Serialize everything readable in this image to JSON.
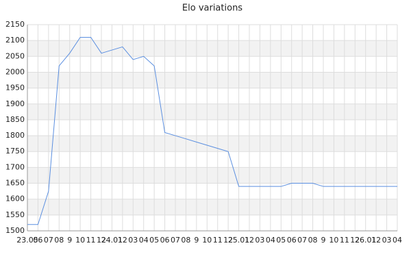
{
  "chart_data": {
    "type": "line",
    "title": "Elo variations",
    "categories": [
      "23.05",
      "06",
      "07",
      "08",
      "9",
      "10",
      "11",
      "12",
      "24.01",
      "12",
      "03",
      "04",
      "05",
      "06",
      "07",
      "08",
      "9",
      "10",
      "11",
      "12",
      "25.01",
      "12",
      "03",
      "04",
      "05",
      "06",
      "07",
      "08",
      "9",
      "10",
      "11",
      "12",
      "26.01",
      "12",
      "03",
      "04"
    ],
    "series": [
      {
        "name": "Elo",
        "color": "#5b8fe0",
        "values": [
          1520,
          1520,
          1625,
          2020,
          2060,
          2110,
          2110,
          2060,
          2070,
          2080,
          2040,
          2050,
          2020,
          1810,
          1800,
          1790,
          1780,
          1770,
          1760,
          1750,
          1640,
          1640,
          1640,
          1640,
          1640,
          1650,
          1650,
          1650,
          1640,
          1640,
          1640,
          1640,
          1640,
          1640,
          1640,
          1640
        ]
      }
    ],
    "ylim": [
      1500,
      2150
    ],
    "yticks": [
      1500,
      1550,
      1600,
      1650,
      1700,
      1750,
      1800,
      1850,
      1900,
      1950,
      2000,
      2050,
      2100,
      2150
    ],
    "grid": true
  }
}
